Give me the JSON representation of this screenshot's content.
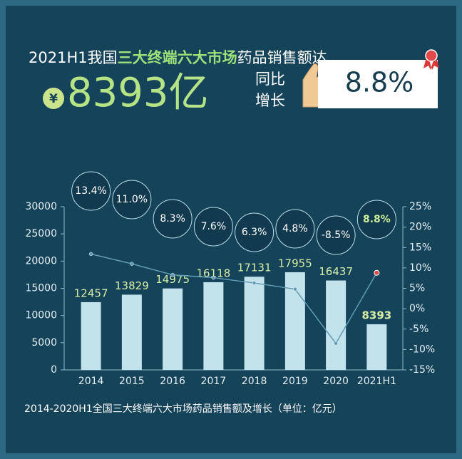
{
  "header": {
    "title_parts": [
      "2021H1我国",
      "三大终端六大市场",
      "药品销售额达"
    ],
    "currency": "¥",
    "amount": "8393亿",
    "yoy_label": [
      "同比",
      "增长"
    ],
    "yoy_value": "8.8%"
  },
  "chart_data": {
    "type": "bar",
    "categories": [
      "2014",
      "2015",
      "2016",
      "2017",
      "2018",
      "2019",
      "2020",
      "2021H1"
    ],
    "series": [
      {
        "type": "bar",
        "color": "#c3e3ec",
        "values": [
          12457,
          13829,
          14975,
          16118,
          17131,
          17955,
          16437,
          8393
        ]
      },
      {
        "type": "line",
        "axis": "y2",
        "color": "#5f9bb4",
        "values": [
          13.4,
          11.0,
          8.3,
          7.6,
          6.3,
          4.8,
          -8.5,
          8.8
        ],
        "value_labels": [
          "13.4%",
          "11.0%",
          "8.3%",
          "7.6%",
          "6.3%",
          "4.8%",
          "-8.5%",
          "8.8%"
        ]
      }
    ],
    "ylim": [
      0,
      30000
    ],
    "yticks": [
      0,
      5000,
      10000,
      15000,
      20000,
      25000,
      30000
    ],
    "y2lim": [
      -15,
      25
    ],
    "y2ticks": [
      {
        "value": -15,
        "label": "-15%"
      },
      {
        "value": -10,
        "label": "-10%"
      },
      {
        "value": -5,
        "label": "-5%"
      },
      {
        "value": 0,
        "label": "0%"
      },
      {
        "value": 5,
        "label": "5%"
      },
      {
        "value": 10,
        "label": "10%"
      },
      {
        "value": 15,
        "label": "15%"
      },
      {
        "value": 20,
        "label": "20%"
      },
      {
        "value": 25,
        "label": "25%"
      }
    ],
    "caption": "2014-2020H1全国三大终端六大市场药品销售额及增长（单位：亿元）"
  }
}
